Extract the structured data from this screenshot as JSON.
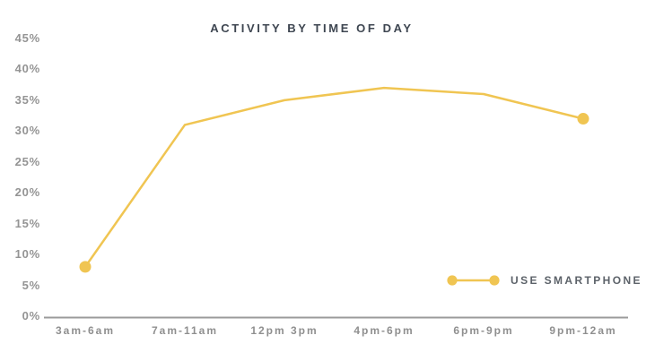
{
  "chart_data": {
    "type": "line",
    "title": "ACTIVITY BY TIME OF DAY",
    "categories": [
      "3am-6am",
      "7am-11am",
      "12pm 3pm",
      "4pm-6pm",
      "6pm-9pm",
      "9pm-12am"
    ],
    "series": [
      {
        "name": "USE SMARTPHONE",
        "values": [
          8,
          31,
          35,
          37,
          36,
          32
        ]
      }
    ],
    "y_ticks": [
      "45%",
      "40%",
      "35%",
      "30%",
      "25%",
      "20%",
      "15%",
      "10%",
      "5%",
      "0%"
    ],
    "ylim": [
      0,
      45
    ],
    "grid": false,
    "legend_position": "bottom-right",
    "marker_style": "endpoints-only",
    "colors": {
      "line": "#F0C552",
      "axis": "#9B9B9B",
      "y_tick_label": "#949494",
      "x_tick_label": "#8F8F8F",
      "title": "#3E4651",
      "legend_text": "#5C6269",
      "background": "#FFFFFF"
    }
  }
}
